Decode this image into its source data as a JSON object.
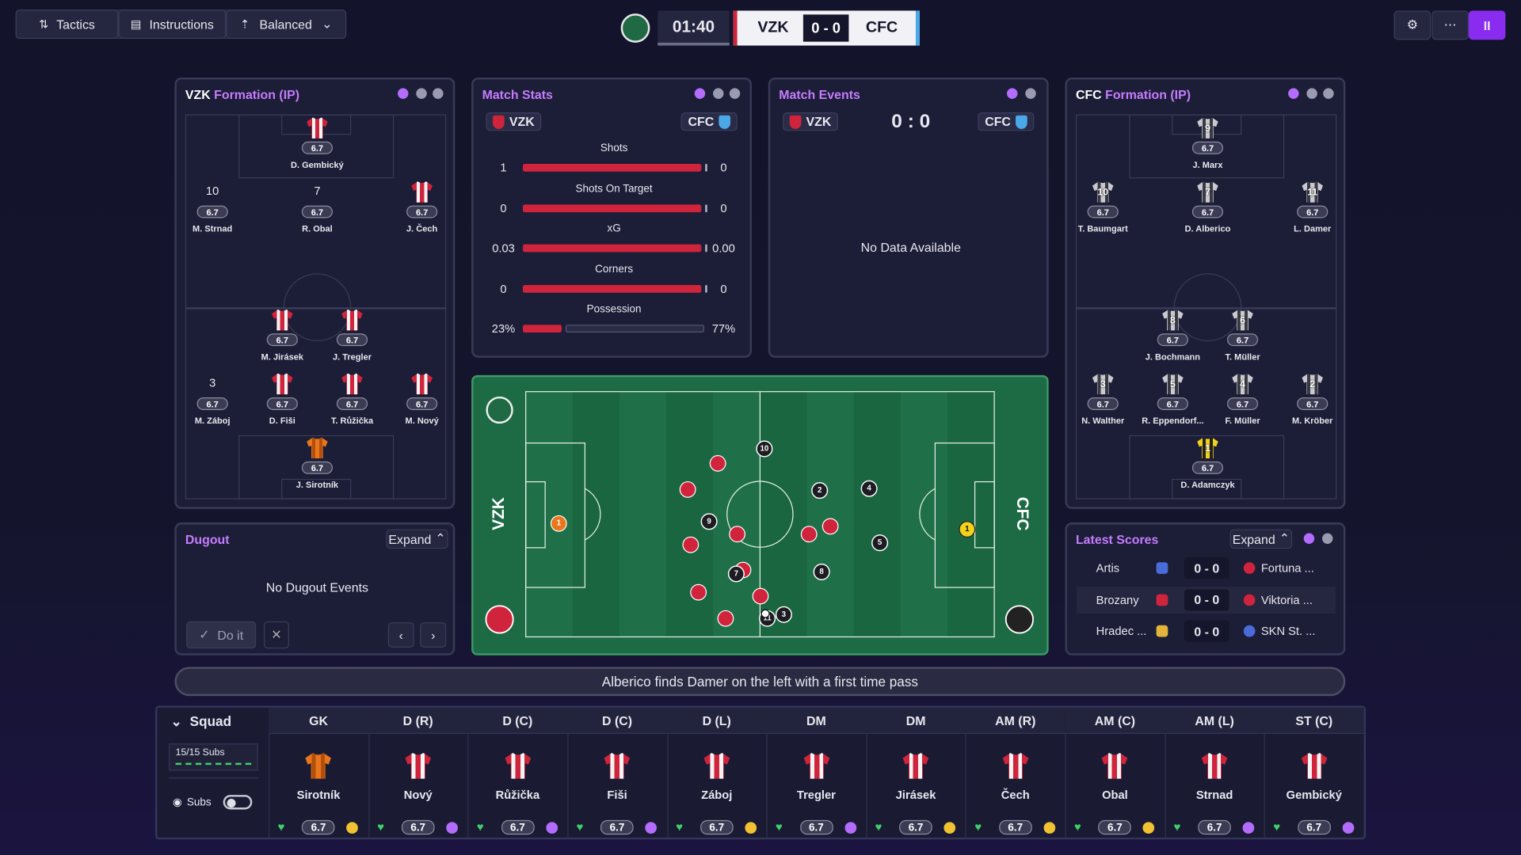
{
  "topbar": {
    "tactics": "Tactics",
    "instructions": "Instructions",
    "mentality": "Balanced",
    "clock": "01:40",
    "home": "VZK",
    "score": "0 - 0",
    "away": "CFC"
  },
  "home_formation": {
    "team": "VZK",
    "title": "Formation (IP)",
    "players": [
      {
        "name": "D. Gembický",
        "rating": 6.7
      },
      {
        "name": "M. Strnad",
        "number": 10,
        "rating": 6.7
      },
      {
        "name": "R. Obal",
        "number": 7,
        "rating": 6.7
      },
      {
        "name": "J. Čech",
        "rating": 6.7
      },
      {
        "name": "M. Jirásek",
        "rating": 6.7
      },
      {
        "name": "J. Tregler",
        "rating": 6.7
      },
      {
        "name": "M. Záboj",
        "number": 3,
        "rating": 6.7
      },
      {
        "name": "D. Fiši",
        "rating": 6.7
      },
      {
        "name": "T. Růžička",
        "rating": 6.7
      },
      {
        "name": "M. Nový",
        "rating": 6.7
      },
      {
        "name": "J. Sirotník",
        "rating": 6.7
      }
    ]
  },
  "away_formation": {
    "team": "CFC",
    "title": "Formation (IP)",
    "players": [
      {
        "name": "J. Marx",
        "number": 9,
        "rating": 6.7
      },
      {
        "name": "T. Baumgart",
        "number": 10,
        "rating": 6.7
      },
      {
        "name": "D. Alberico",
        "number": 7,
        "rating": 6.7
      },
      {
        "name": "L. Damer",
        "number": 11,
        "rating": 6.7
      },
      {
        "name": "J. Bochmann",
        "number": 8,
        "rating": 6.7
      },
      {
        "name": "T. Müller",
        "number": 6,
        "rating": 6.7
      },
      {
        "name": "N. Walther",
        "number": 3,
        "rating": 6.7
      },
      {
        "name": "R. Eppendorf...",
        "number": 5,
        "rating": 6.7
      },
      {
        "name": "F. Müller",
        "number": 4,
        "rating": 6.7
      },
      {
        "name": "M. Kröber",
        "number": 2,
        "rating": 6.7
      },
      {
        "name": "D. Adamczyk",
        "number": 1,
        "rating": 6.7
      }
    ]
  },
  "match_stats": {
    "title": "Match Stats",
    "home": "VZK",
    "away": "CFC",
    "rows": [
      {
        "label": "Shots",
        "home": "1",
        "away": "0"
      },
      {
        "label": "Shots On Target",
        "home": "0",
        "away": "0"
      },
      {
        "label": "xG",
        "home": "0.03",
        "away": "0.00"
      },
      {
        "label": "Corners",
        "home": "0",
        "away": "0"
      },
      {
        "label": "Possession",
        "home": "23%",
        "away": "77%"
      }
    ]
  },
  "match_events": {
    "title": "Match Events",
    "home": "VZK",
    "score": "0 : 0",
    "away": "CFC",
    "empty": "No Data Available"
  },
  "pitch": {
    "home": "VZK",
    "away": "CFC",
    "home_keeper": 1,
    "away_keeper": 1,
    "away_players": [
      10,
      2,
      4,
      9,
      5,
      8,
      7,
      3,
      11
    ]
  },
  "dugout": {
    "title": "Dugout",
    "expand": "Expand",
    "empty": "No Dugout Events",
    "action": "Do it"
  },
  "latest_scores": {
    "title": "Latest Scores",
    "expand": "Expand",
    "rows": [
      [
        "Artis",
        "0 - 0",
        "Fortuna ..."
      ],
      [
        "Brozany",
        "0 - 0",
        "Viktoria ..."
      ],
      [
        "Hradec ...",
        "0 - 0",
        "SKN St. ..."
      ]
    ]
  },
  "commentary": "Alberico finds Damer on the left with a first time pass",
  "squad": {
    "title": "Squad",
    "subs_count": "15/15 Subs",
    "subs_toggle": "Subs",
    "columns": [
      {
        "position": "GK",
        "name": "Sirotník",
        "rating": 6.7
      },
      {
        "position": "D (R)",
        "name": "Nový",
        "rating": 6.7
      },
      {
        "position": "D (C)",
        "name": "Růžička",
        "rating": 6.7
      },
      {
        "position": "D (C)",
        "name": "Fiši",
        "rating": 6.7
      },
      {
        "position": "D (L)",
        "name": "Záboj",
        "rating": 6.7
      },
      {
        "position": "DM",
        "name": "Tregler",
        "rating": 6.7
      },
      {
        "position": "DM",
        "name": "Jirásek",
        "rating": 6.7
      },
      {
        "position": "AM (R)",
        "name": "Čech",
        "rating": 6.7
      },
      {
        "position": "AM (C)",
        "name": "Obal",
        "rating": 6.7
      },
      {
        "position": "AM (L)",
        "name": "Strnad",
        "rating": 6.7
      },
      {
        "position": "ST (C)",
        "name": "Gembický",
        "rating": 6.7
      }
    ]
  }
}
